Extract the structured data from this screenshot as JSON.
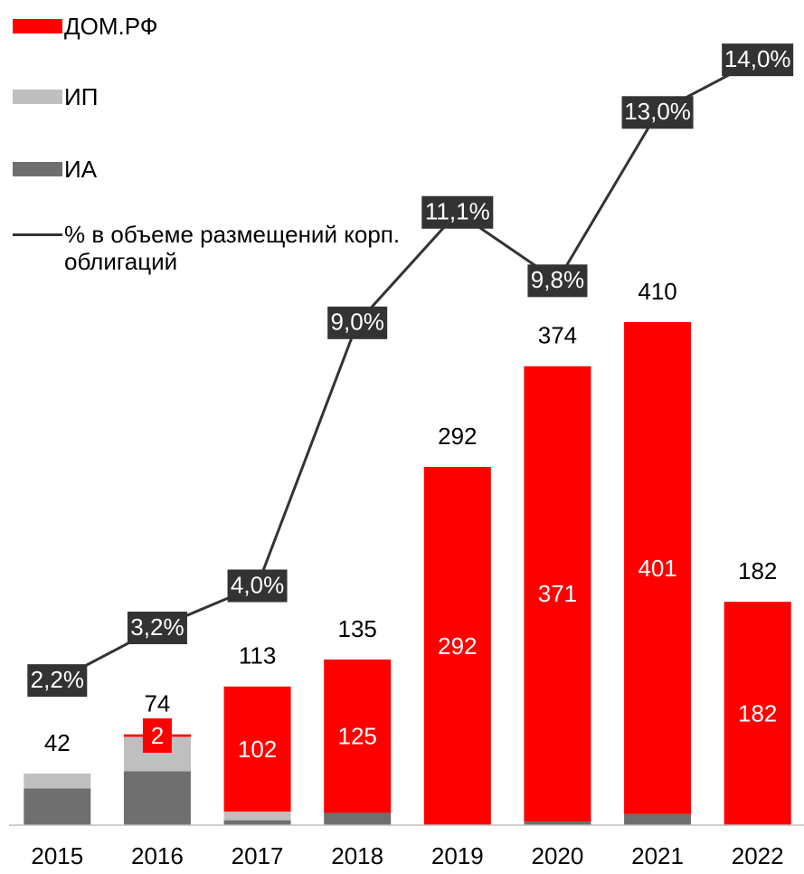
{
  "chart_data": {
    "type": "bar",
    "categories": [
      "2015",
      "2016",
      "2017",
      "2018",
      "2019",
      "2020",
      "2021",
      "2022"
    ],
    "stacked": true,
    "series": [
      {
        "name": "ИА",
        "color": "#6f6f6f",
        "values": [
          30,
          44,
          4,
          10,
          0,
          3,
          9,
          0
        ]
      },
      {
        "name": "ИП",
        "color": "#bfbfbf",
        "values": [
          12,
          28,
          7,
          0,
          0,
          0,
          0,
          0
        ]
      },
      {
        "name": "ДОМ.РФ",
        "color": "#ff0000",
        "values": [
          null,
          2,
          102,
          125,
          292,
          371,
          401,
          182
        ]
      },
      {
        "name": "% в объеме размещений корп. облигаций",
        "type": "line",
        "axis": "y2",
        "color": "#333333",
        "values": [
          2.2,
          3.2,
          4.0,
          9.0,
          11.1,
          9.8,
          13.0,
          14.0
        ],
        "value_labels": [
          "2,2%",
          "3,2%",
          "4,0%",
          "9,0%",
          "11,1%",
          "9,8%",
          "13,0%",
          "14,0%"
        ]
      }
    ],
    "totals": [
      42,
      74,
      113,
      135,
      292,
      374,
      410,
      182
    ],
    "ylim": [
      0,
      643
    ],
    "y2lim": [
      -0.55,
      14.45
    ],
    "legend": "top-left",
    "legend_order": [
      2,
      1,
      0,
      3
    ]
  }
}
